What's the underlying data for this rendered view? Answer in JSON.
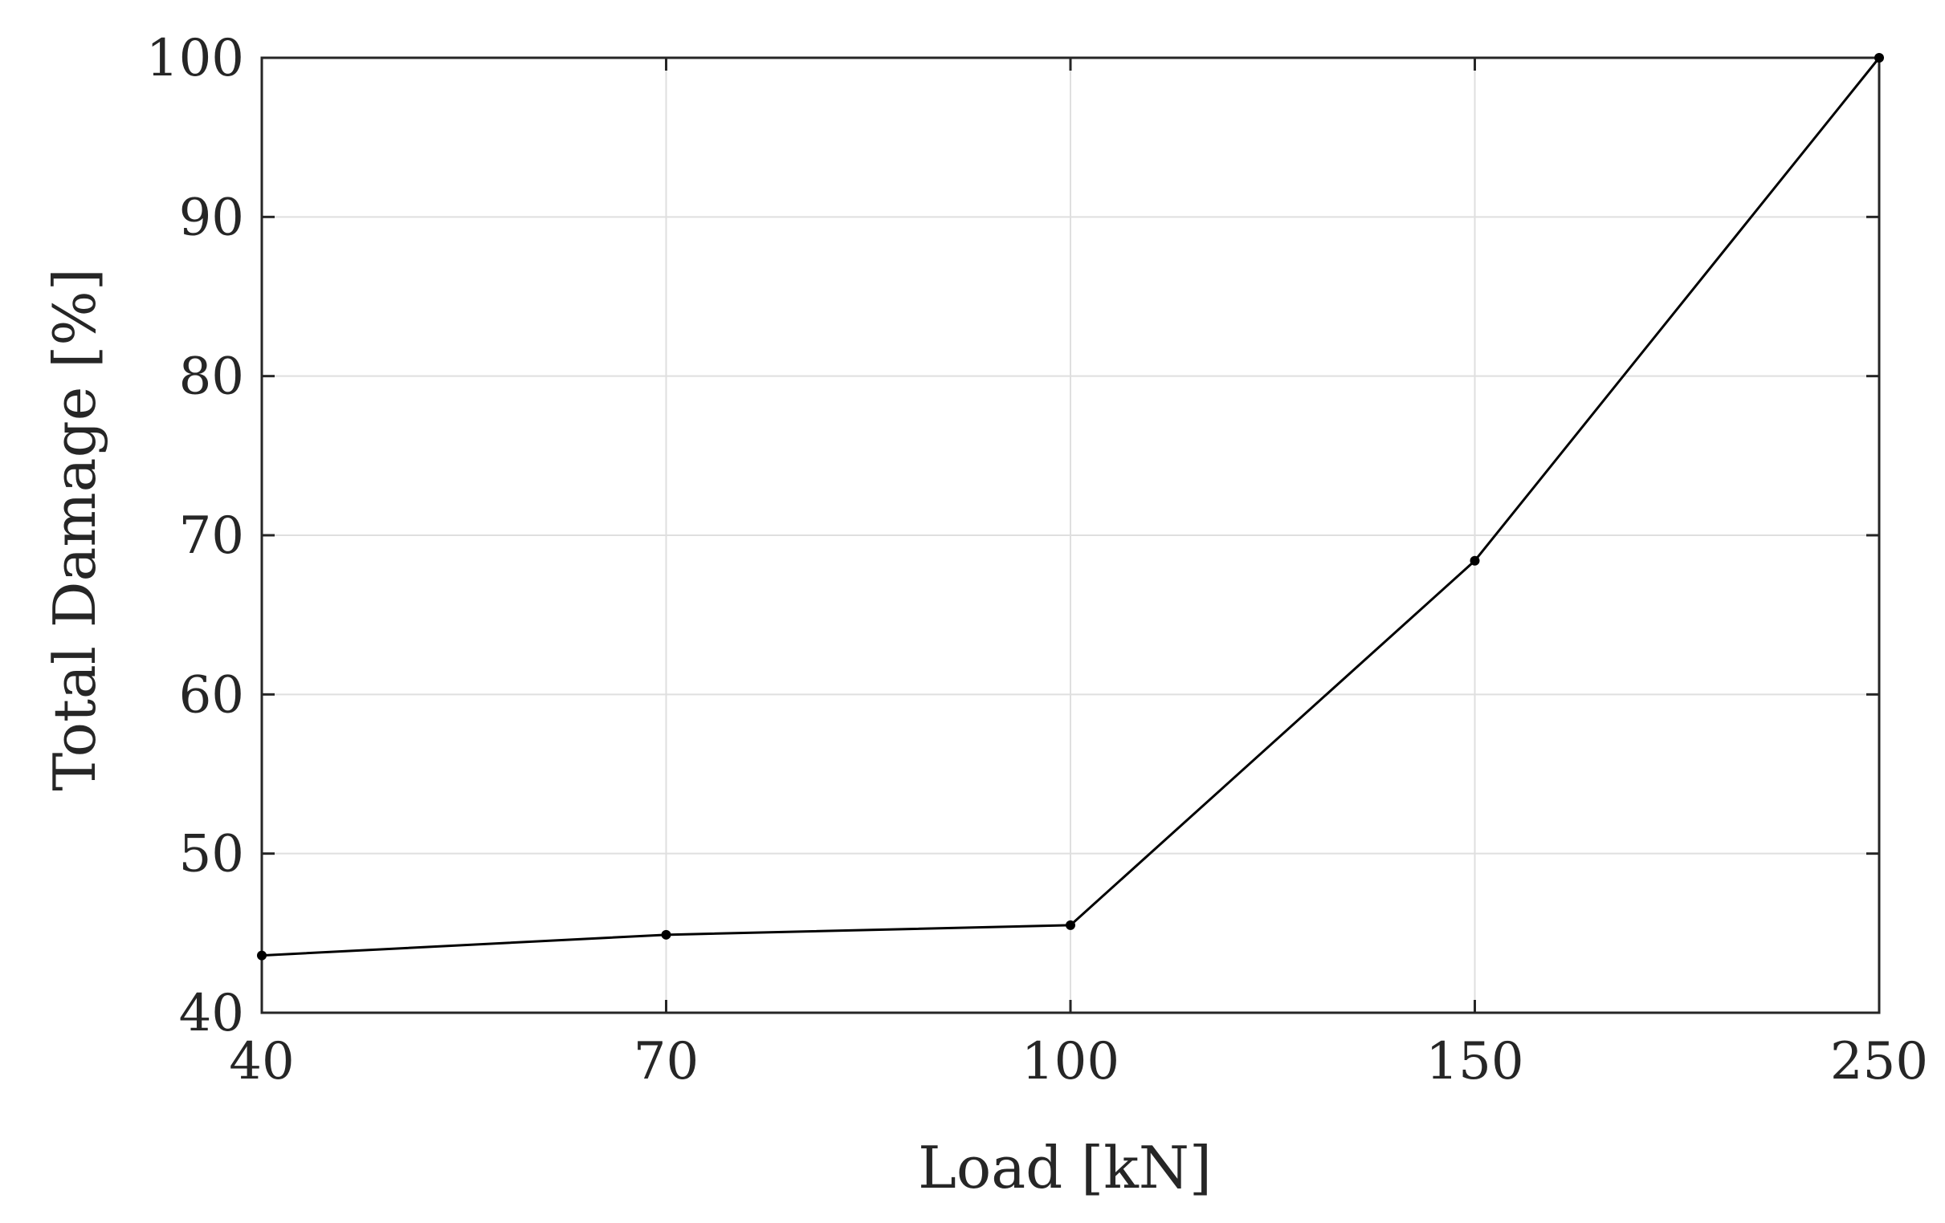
{
  "chart_data": {
    "type": "line",
    "title": "",
    "xlabel": "Load [kN]",
    "ylabel": "Total Damage [%]",
    "x_scale": "categorical",
    "categories": [
      "40",
      "70",
      "100",
      "150",
      "250"
    ],
    "series": [
      {
        "values": [
          43.6,
          44.9,
          45.5,
          68.4,
          100
        ]
      }
    ],
    "ylim": [
      40,
      100
    ],
    "yticks": [
      40,
      50,
      60,
      70,
      80,
      90,
      100
    ],
    "ytick_labels": [
      "40",
      "50",
      "60",
      "70",
      "80",
      "90",
      "100"
    ],
    "grid": true,
    "markers": true,
    "colors": {
      "line": "#000000",
      "grid": "#dfdfdf",
      "axis": "#262626"
    }
  }
}
